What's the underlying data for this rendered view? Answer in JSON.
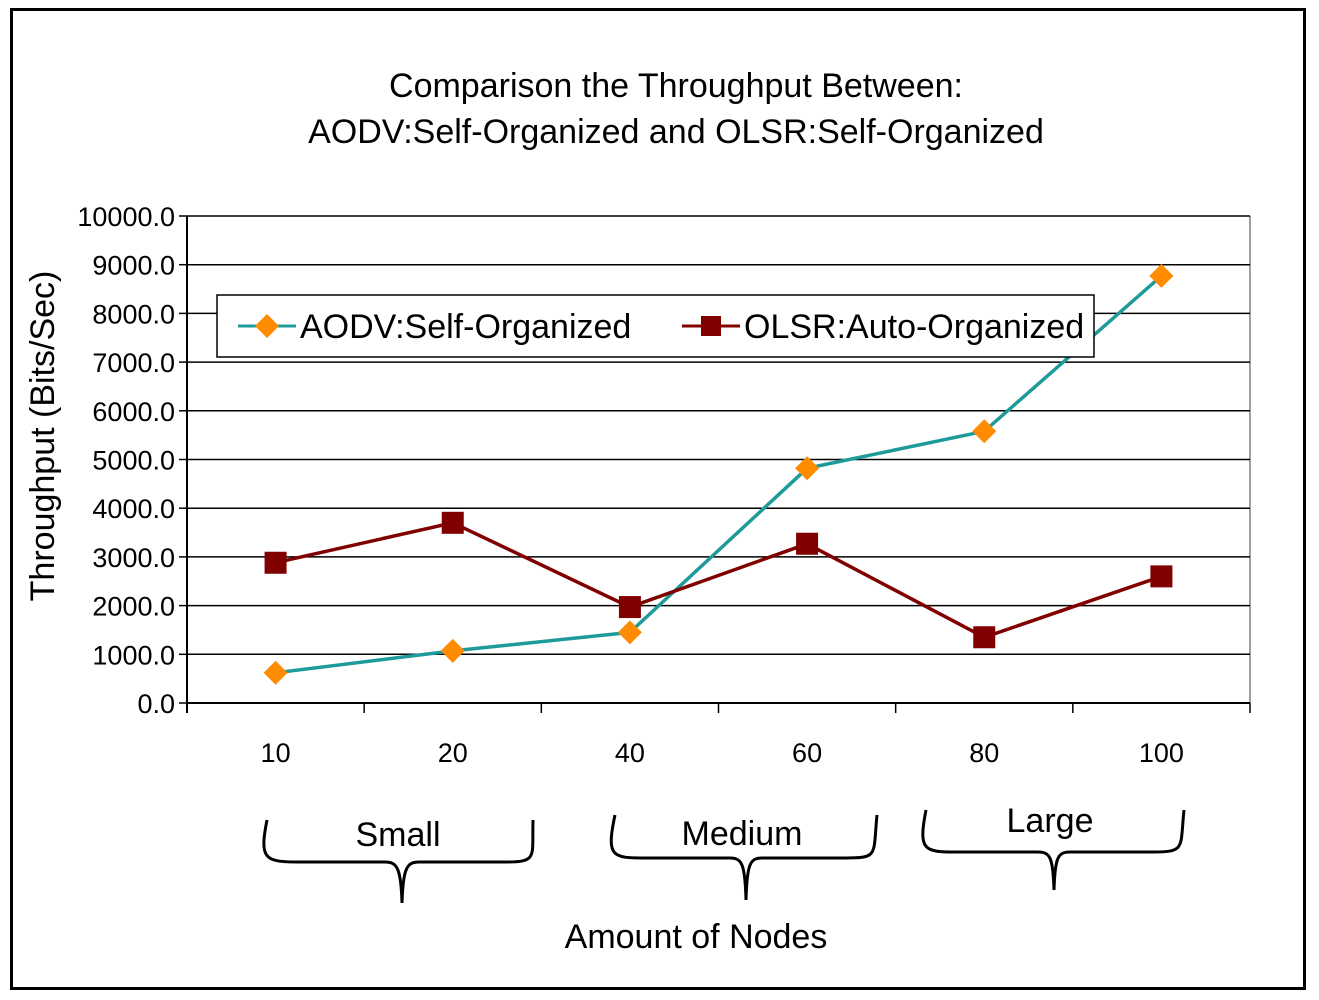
{
  "chart_data": {
    "type": "line",
    "title": [
      "Comparison the Throughput Between:",
      "AODV:Self-Organized and OLSR:Self-Organized"
    ],
    "xlabel": "Amount of Nodes",
    "ylabel": "Throughput (Bits/Sec)",
    "categories": [
      "10",
      "20",
      "40",
      "60",
      "80",
      "100"
    ],
    "ylim": [
      0,
      10000
    ],
    "yticks": [
      "0.0",
      "1000.0",
      "2000.0",
      "3000.0",
      "4000.0",
      "5000.0",
      "6000.0",
      "7000.0",
      "8000.0",
      "9000.0",
      "10000.0"
    ],
    "grid": true,
    "legend_position": "top",
    "series": [
      {
        "name": "AODV:Self-Organized",
        "values": [
          620,
          1070,
          1450,
          4820,
          5580,
          8770
        ],
        "color": "#1f9a9a",
        "marker": "diamond",
        "marker_color": "#ff8c00"
      },
      {
        "name": "OLSR:Auto-Organized",
        "values": [
          2880,
          3700,
          1970,
          3270,
          1350,
          2600
        ],
        "color": "#800000",
        "marker": "square",
        "marker_color": "#800000"
      }
    ],
    "groups": [
      {
        "label": "Small"
      },
      {
        "label": "Medium"
      },
      {
        "label": "Large"
      }
    ]
  }
}
